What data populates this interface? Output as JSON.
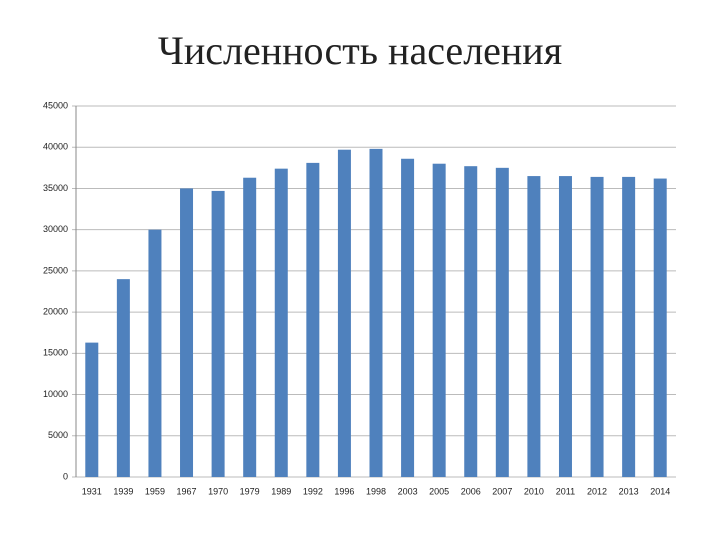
{
  "chart_data": {
    "type": "bar",
    "title": "Численность населения",
    "categories": [
      "1931",
      "1939",
      "1959",
      "1967",
      "1970",
      "1979",
      "1989",
      "1992",
      "1996",
      "1998",
      "2003",
      "2005",
      "2006",
      "2007",
      "2010",
      "2011",
      "2012",
      "2013",
      "2014"
    ],
    "values": [
      16300,
      24000,
      30000,
      35000,
      34700,
      36300,
      37400,
      38100,
      39700,
      39800,
      38600,
      38000,
      37700,
      37500,
      36500,
      36500,
      36400,
      36400,
      36200
    ],
    "color": "#4f81bd",
    "ylim": [
      0,
      45000
    ],
    "yticks": [
      0,
      5000,
      10000,
      15000,
      20000,
      25000,
      30000,
      35000,
      40000,
      45000
    ],
    "grid": true
  }
}
